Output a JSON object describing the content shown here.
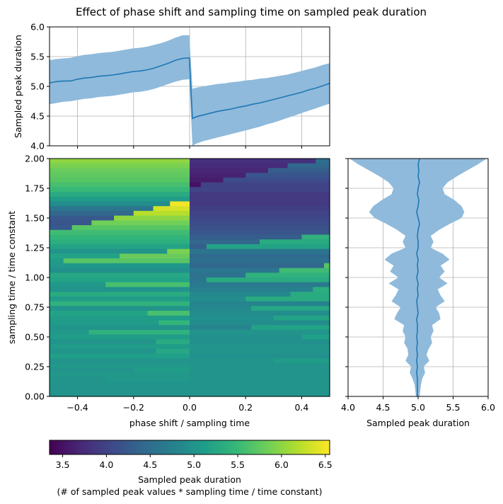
{
  "title": "Effect of phase shift and sampling time on sampled peak duration",
  "colors": {
    "band": "#8fbadb",
    "line": "#1f77b4",
    "grid": "#b0b0b0",
    "viridis": [
      "#440154",
      "#482878",
      "#3e4989",
      "#31688e",
      "#26828e",
      "#1f9e89",
      "#35b779",
      "#6ece58",
      "#b5de2b",
      "#fde725"
    ]
  },
  "chart_data": [
    {
      "id": "top",
      "type": "line",
      "title": "",
      "xlabel": "",
      "ylabel": "Sampled peak duration",
      "xlim": [
        -0.5,
        0.5
      ],
      "ylim": [
        4.0,
        6.0
      ],
      "yticks": [
        "4.0",
        "4.5",
        "5.0",
        "5.5",
        "6.0"
      ],
      "yticks_values": [
        4.0,
        4.5,
        5.0,
        5.5,
        6.0
      ],
      "xticks_values": [
        -0.4,
        -0.2,
        0.0,
        0.2,
        0.4
      ],
      "grid": true,
      "x": [
        -0.5,
        -0.475,
        -0.45,
        -0.425,
        -0.4,
        -0.375,
        -0.35,
        -0.325,
        -0.3,
        -0.275,
        -0.25,
        -0.225,
        -0.2,
        -0.175,
        -0.15,
        -0.125,
        -0.1,
        -0.075,
        -0.05,
        -0.025,
        -0.001,
        0.01,
        0.025,
        0.05,
        0.075,
        0.1,
        0.125,
        0.15,
        0.175,
        0.2,
        0.225,
        0.25,
        0.275,
        0.3,
        0.325,
        0.35,
        0.375,
        0.4,
        0.425,
        0.45,
        0.475,
        0.5
      ],
      "series": [
        {
          "name": "mean",
          "values": [
            5.06,
            5.08,
            5.09,
            5.09,
            5.12,
            5.14,
            5.15,
            5.17,
            5.18,
            5.19,
            5.21,
            5.23,
            5.25,
            5.26,
            5.28,
            5.31,
            5.35,
            5.39,
            5.44,
            5.47,
            5.48,
            4.46,
            4.49,
            4.52,
            4.55,
            4.58,
            4.6,
            4.62,
            4.65,
            4.67,
            4.7,
            4.72,
            4.75,
            4.78,
            4.81,
            4.84,
            4.87,
            4.9,
            4.94,
            4.97,
            5.01,
            5.05
          ]
        },
        {
          "name": "upper",
          "values": [
            5.44,
            5.46,
            5.47,
            5.48,
            5.51,
            5.53,
            5.54,
            5.56,
            5.57,
            5.58,
            5.6,
            5.62,
            5.64,
            5.65,
            5.67,
            5.7,
            5.73,
            5.77,
            5.82,
            5.86,
            5.86,
            4.96,
            4.98,
            5.0,
            5.02,
            5.04,
            5.05,
            5.07,
            5.08,
            5.1,
            5.11,
            5.13,
            5.14,
            5.16,
            5.18,
            5.2,
            5.23,
            5.26,
            5.29,
            5.32,
            5.36,
            5.39
          ]
        },
        {
          "name": "lower",
          "values": [
            4.7,
            4.72,
            4.74,
            4.75,
            4.77,
            4.79,
            4.8,
            4.82,
            4.83,
            4.84,
            4.86,
            4.88,
            4.9,
            4.91,
            4.93,
            4.96,
            5.0,
            5.04,
            5.08,
            5.11,
            5.12,
            4.0,
            4.04,
            4.08,
            4.11,
            4.14,
            4.17,
            4.2,
            4.23,
            4.26,
            4.29,
            4.32,
            4.36,
            4.39,
            4.43,
            4.47,
            4.51,
            4.55,
            4.59,
            4.63,
            4.67,
            4.71
          ]
        }
      ]
    },
    {
      "id": "heat",
      "type": "heatmap",
      "xlabel": "phase shift / sampling time",
      "ylabel": "sampling time / time constant",
      "xlim": [
        -0.5,
        0.5
      ],
      "ylim": [
        0.0,
        2.0
      ],
      "xticks": [
        "−0.4",
        "−0.2",
        "0.0",
        "0.2",
        "0.4"
      ],
      "xticks_values": [
        -0.4,
        -0.2,
        0.0,
        0.2,
        0.4
      ],
      "yticks": [
        "0.00",
        "0.25",
        "0.50",
        "0.75",
        "1.00",
        "1.25",
        "1.50",
        "1.75",
        "2.00"
      ],
      "yticks_values": [
        0.0,
        0.25,
        0.5,
        0.75,
        1.0,
        1.25,
        1.5,
        1.75,
        2.0
      ],
      "rows": [
        {
          "y": 1.98,
          "left": [
            6.0,
            6.0
          ],
          "right": [
            3.8,
            4.5
          ],
          "split": 0.45
        },
        {
          "y": 1.94,
          "left": [
            5.9,
            5.9
          ],
          "right": [
            3.75,
            4.4
          ],
          "split": 0.35
        },
        {
          "y": 1.9,
          "left": [
            5.8,
            5.8
          ],
          "right": [
            3.7,
            4.3
          ],
          "split": 0.28
        },
        {
          "y": 1.86,
          "left": [
            5.75,
            5.75
          ],
          "right": [
            3.65,
            4.2
          ],
          "split": 0.2
        },
        {
          "y": 1.82,
          "left": [
            5.7,
            5.7
          ],
          "right": [
            3.6,
            4.1
          ],
          "split": 0.12
        },
        {
          "y": 1.78,
          "left": [
            5.6,
            5.6
          ],
          "right": [
            3.5,
            4.0
          ],
          "split": 0.04
        },
        {
          "y": 1.74,
          "left": [
            5.5,
            5.5
          ],
          "right": [
            3.4,
            4.0
          ],
          "split": 0.0
        },
        {
          "y": 1.7,
          "left": [
            5.3,
            5.3
          ],
          "right": [
            3.6,
            3.9
          ],
          "split": 0.0
        },
        {
          "y": 1.66,
          "left": [
            5.1,
            5.1
          ],
          "right": [
            3.8,
            3.9
          ],
          "split": 0.0
        },
        {
          "y": 1.62,
          "left": [
            4.9,
            6.5
          ],
          "right": [
            3.9,
            3.9
          ],
          "split": -0.07
        },
        {
          "y": 1.58,
          "left": [
            4.6,
            6.35
          ],
          "right": [
            3.95,
            3.95
          ],
          "split": -0.13
        },
        {
          "y": 1.54,
          "left": [
            4.4,
            6.2
          ],
          "right": [
            4.0,
            4.0
          ],
          "split": -0.2
        },
        {
          "y": 1.5,
          "left": [
            4.25,
            6.0
          ],
          "right": [
            4.05,
            4.05
          ],
          "split": -0.27
        },
        {
          "y": 1.46,
          "left": [
            4.2,
            5.85
          ],
          "right": [
            4.1,
            4.1
          ],
          "split": -0.35
        },
        {
          "y": 1.42,
          "left": [
            4.25,
            5.7
          ],
          "right": [
            4.15,
            4.15
          ],
          "split": -0.42
        },
        {
          "y": 1.38,
          "left": [
            5.55,
            5.55
          ],
          "right": [
            4.2,
            5.5
          ],
          "split": 0.5
        },
        {
          "y": 1.34,
          "left": [
            5.45,
            5.45
          ],
          "right": [
            4.3,
            5.4
          ],
          "split": 0.4
        },
        {
          "y": 1.3,
          "left": [
            5.35,
            5.35
          ],
          "right": [
            4.4,
            5.3
          ],
          "split": 0.25
        },
        {
          "y": 1.26,
          "left": [
            5.2,
            5.2
          ],
          "right": [
            4.3,
            5.2
          ],
          "split": 0.06
        },
        {
          "y": 1.22,
          "left": [
            5.0,
            5.9
          ],
          "right": [
            4.6,
            4.6
          ],
          "split": -0.08
        },
        {
          "y": 1.18,
          "left": [
            5.2,
            5.8
          ],
          "right": [
            4.45,
            4.45
          ],
          "split": -0.25
        },
        {
          "y": 1.14,
          "left": [
            5.1,
            5.7
          ],
          "right": [
            4.5,
            4.5
          ],
          "split": -0.45
        },
        {
          "y": 1.1,
          "left": [
            5.05,
            5.05
          ],
          "right": [
            4.4,
            5.7
          ],
          "split": 0.48
        },
        {
          "y": 1.06,
          "left": [
            4.95,
            4.95
          ],
          "right": [
            4.6,
            5.55
          ],
          "split": 0.32
        },
        {
          "y": 1.02,
          "left": [
            5.25,
            5.25
          ],
          "right": [
            4.55,
            5.4
          ],
          "split": 0.2
        },
        {
          "y": 0.98,
          "left": [
            5.2,
            5.2
          ],
          "right": [
            4.6,
            5.3
          ],
          "split": 0.06
        },
        {
          "y": 0.94,
          "left": [
            5.05,
            5.6
          ],
          "right": [
            4.65,
            4.65
          ],
          "split": -0.3
        },
        {
          "y": 0.9,
          "left": [
            5.0,
            5.5
          ],
          "right": [
            4.75,
            5.35
          ],
          "split": 0.44
        },
        {
          "y": 0.86,
          "left": [
            5.3,
            5.3
          ],
          "right": [
            4.85,
            5.3
          ],
          "split": 0.36
        },
        {
          "y": 0.82,
          "left": [
            5.1,
            5.1
          ],
          "right": [
            4.9,
            5.3
          ],
          "split": 0.2
        },
        {
          "y": 0.78,
          "left": [
            5.4,
            5.4
          ],
          "right": [
            4.8,
            4.8
          ],
          "split": 0.0
        },
        {
          "y": 0.74,
          "left": [
            5.0,
            5.5
          ],
          "right": [
            4.85,
            5.25
          ],
          "split": 0.22
        },
        {
          "y": 0.7,
          "left": [
            5.2,
            5.6
          ],
          "right": [
            4.9,
            4.9
          ],
          "split": -0.15
        },
        {
          "y": 0.66,
          "left": [
            5.1,
            5.5
          ],
          "right": [
            4.95,
            5.2
          ],
          "split": 0.3
        },
        {
          "y": 0.62,
          "left": [
            5.1,
            5.45
          ],
          "right": [
            4.9,
            4.9
          ],
          "split": -0.11
        },
        {
          "y": 0.58,
          "left": [
            5.0,
            5.3
          ],
          "right": [
            4.8,
            5.2
          ],
          "split": 0.22
        },
        {
          "y": 0.54,
          "left": [
            5.05,
            5.4
          ],
          "right": [
            5.0,
            5.0
          ],
          "split": -0.36
        },
        {
          "y": 0.5,
          "left": [
            5.1,
            5.1
          ],
          "right": [
            4.95,
            5.15
          ],
          "split": 0.4
        },
        {
          "y": 0.46,
          "left": [
            5.0,
            5.3
          ],
          "right": [
            4.95,
            4.95
          ],
          "split": -0.12
        },
        {
          "y": 0.42,
          "left": [
            5.1,
            5.1
          ],
          "right": [
            5.0,
            5.0
          ],
          "split": 0.0
        },
        {
          "y": 0.38,
          "left": [
            5.0,
            5.25
          ],
          "right": [
            5.0,
            5.0
          ],
          "split": -0.12
        },
        {
          "y": 0.34,
          "left": [
            5.15,
            5.15
          ],
          "right": [
            4.95,
            4.95
          ],
          "split": 0.0
        },
        {
          "y": 0.3,
          "left": [
            5.0,
            5.0
          ],
          "right": [
            5.0,
            5.1
          ],
          "split": 0.3
        },
        {
          "y": 0.26,
          "left": [
            5.05,
            5.05
          ],
          "right": [
            5.0,
            5.0
          ],
          "split": 0.0
        },
        {
          "y": 0.22,
          "left": [
            5.0,
            5.1
          ],
          "right": [
            5.0,
            5.0
          ],
          "split": -0.2
        },
        {
          "y": 0.18,
          "left": [
            5.05,
            5.05
          ],
          "right": [
            5.0,
            5.0
          ],
          "split": 0.0
        },
        {
          "y": 0.14,
          "left": [
            5.0,
            5.05
          ],
          "right": [
            5.0,
            5.0
          ],
          "split": -0.3
        },
        {
          "y": 0.1,
          "left": [
            5.0,
            5.0
          ],
          "right": [
            5.0,
            5.0
          ],
          "split": 0.0
        },
        {
          "y": 0.06,
          "left": [
            5.0,
            5.0
          ],
          "right": [
            5.0,
            5.0
          ],
          "split": 0.0
        },
        {
          "y": 0.02,
          "left": [
            5.0,
            5.0
          ],
          "right": [
            5.0,
            5.0
          ],
          "split": 0.0
        }
      ]
    },
    {
      "id": "right",
      "type": "line",
      "xlabel": "Sampled peak duration",
      "xlim": [
        4.0,
        6.0
      ],
      "ylim": [
        0.0,
        2.0
      ],
      "xticks": [
        "4.0",
        "4.5",
        "5.0",
        "5.5",
        "6.0"
      ],
      "xticks_values": [
        4.0,
        4.5,
        5.0,
        5.5,
        6.0
      ],
      "grid": true,
      "y": [
        2.0,
        1.95,
        1.9,
        1.85,
        1.8,
        1.75,
        1.7,
        1.65,
        1.6,
        1.55,
        1.5,
        1.45,
        1.4,
        1.35,
        1.3,
        1.25,
        1.2,
        1.15,
        1.1,
        1.05,
        1.0,
        0.95,
        0.9,
        0.85,
        0.8,
        0.75,
        0.7,
        0.65,
        0.6,
        0.55,
        0.5,
        0.45,
        0.4,
        0.35,
        0.3,
        0.25,
        0.2,
        0.15,
        0.1,
        0.05,
        0.0
      ],
      "series": [
        {
          "name": "mean",
          "values": [
            5.02,
            5.0,
            5.01,
            5.0,
            5.02,
            5.0,
            4.99,
            5.01,
            5.0,
            4.98,
            5.0,
            5.02,
            5.0,
            4.99,
            5.0,
            5.0,
            4.98,
            5.0,
            4.99,
            5.0,
            4.98,
            5.0,
            4.99,
            5.0,
            4.98,
            4.99,
            5.0,
            4.98,
            4.99,
            4.99,
            4.98,
            4.99,
            4.98,
            4.99,
            4.98,
            4.99,
            4.98,
            4.99,
            4.99,
            4.99,
            4.99
          ]
        },
        {
          "name": "upper",
          "values": [
            5.98,
            5.85,
            5.7,
            5.55,
            5.42,
            5.35,
            5.38,
            5.52,
            5.62,
            5.66,
            5.62,
            5.45,
            5.3,
            5.18,
            5.22,
            5.18,
            5.35,
            5.45,
            5.32,
            5.38,
            5.3,
            5.42,
            5.28,
            5.32,
            5.38,
            5.25,
            5.3,
            5.32,
            5.2,
            5.22,
            5.18,
            5.2,
            5.15,
            5.12,
            5.16,
            5.08,
            5.1,
            5.06,
            5.04,
            5.03,
            5.02
          ]
        },
        {
          "name": "lower",
          "values": [
            4.02,
            4.15,
            4.3,
            4.45,
            4.58,
            4.65,
            4.62,
            4.48,
            4.36,
            4.3,
            4.38,
            4.55,
            4.7,
            4.82,
            4.78,
            4.82,
            4.62,
            4.52,
            4.65,
            4.6,
            4.72,
            4.58,
            4.72,
            4.68,
            4.62,
            4.75,
            4.7,
            4.66,
            4.8,
            4.78,
            4.82,
            4.8,
            4.85,
            4.86,
            4.82,
            4.9,
            4.88,
            4.92,
            4.95,
            4.96,
            4.97
          ]
        }
      ]
    },
    {
      "id": "colorbar",
      "type": "colorbar",
      "vmin": 3.35,
      "vmax": 6.55,
      "xticks": [
        "3.5",
        "4.0",
        "4.5",
        "5.0",
        "5.5",
        "6.0",
        "6.5"
      ],
      "xticks_values": [
        3.5,
        4.0,
        4.5,
        5.0,
        5.5,
        6.0,
        6.5
      ],
      "label_line1": "Sampled peak duration",
      "label_line2": "(# of sampled peak values * sampling time / time constant)"
    }
  ]
}
